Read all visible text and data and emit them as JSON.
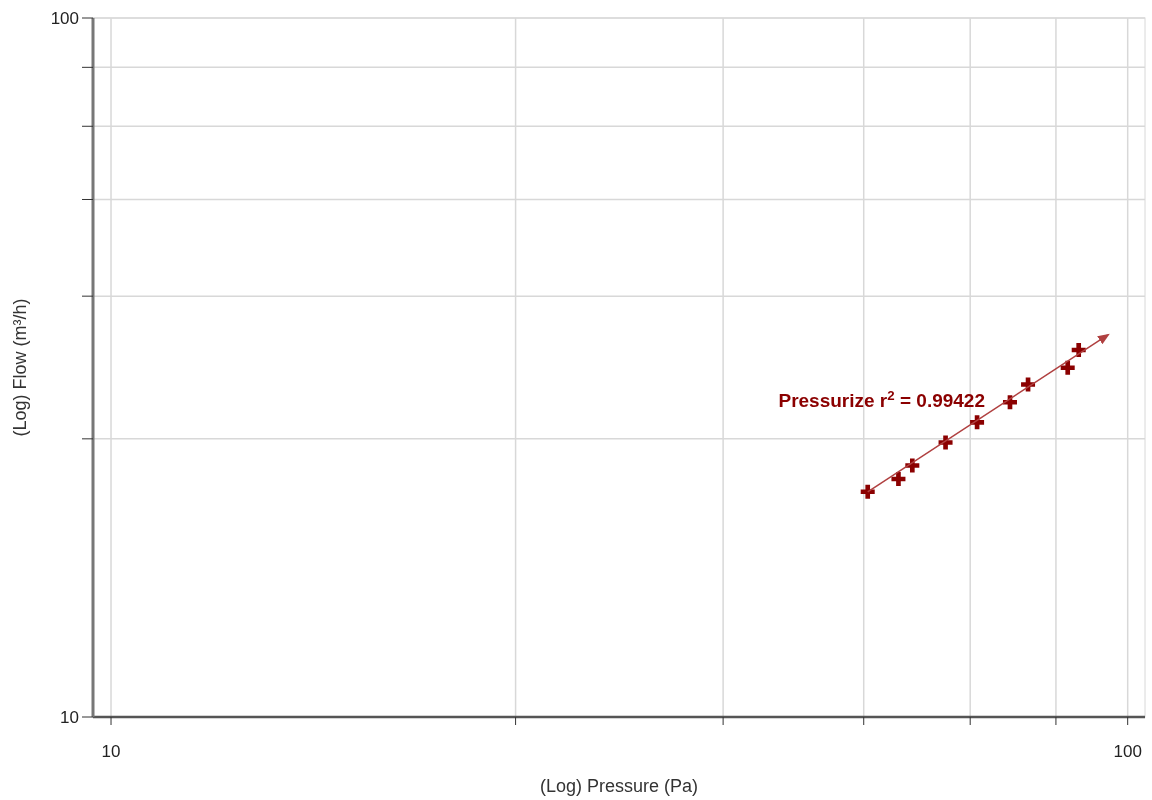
{
  "chart_data": {
    "type": "scatter",
    "xlabel": "(Log) Pressure (Pa)",
    "ylabel": "(Log) Flow (m³/h)",
    "log": "xy",
    "grid": true,
    "marker": "cross",
    "xlim": [
      9.6,
      104
    ],
    "ylim": [
      10,
      100
    ],
    "xticks": [
      10,
      {
        "value": 25,
        "label": null
      },
      {
        "value": 40,
        "label": null
      },
      {
        "value": 55,
        "label": null
      },
      {
        "value": 70,
        "label": null
      },
      {
        "value": 85,
        "label": null
      },
      100
    ],
    "yticks": [
      10,
      {
        "value": 25,
        "label": null
      },
      {
        "value": 40,
        "label": null
      },
      {
        "value": 55,
        "label": null
      },
      {
        "value": 70,
        "label": null
      },
      {
        "value": 85,
        "label": null
      },
      100
    ],
    "series": [
      {
        "color": "#8b0000",
        "x": [
          55.5,
          59.5,
          61.4,
          66.2,
          71.1,
          76.6,
          79.8,
          87.3,
          89.5
        ],
        "values": [
          21.0,
          21.9,
          22.9,
          24.7,
          26.4,
          28.2,
          29.9,
          31.6,
          33.5
        ]
      },
      {
        "type": "line",
        "color": "#b04040",
        "marker": "none",
        "x": [
          55.5,
          95.6
        ],
        "values": [
          21.0,
          35.2
        ]
      }
    ],
    "annotations": [
      "Pressurize r$^{2}$ = 0.99422"
    ]
  }
}
